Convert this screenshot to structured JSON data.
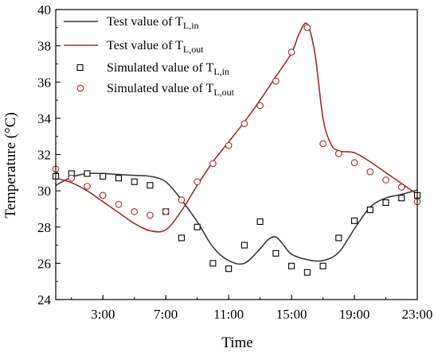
{
  "chart_data": {
    "type": "line",
    "xlabel": "Time",
    "ylabel": "Temperature (°C)",
    "x_tick_labels": [
      "3:00",
      "7:00",
      "11:00",
      "15:00",
      "19:00",
      "23:00"
    ],
    "x_tick_hours": [
      3,
      7,
      11,
      15,
      19,
      23
    ],
    "xlim_hours": [
      0,
      23
    ],
    "ylim": [
      24,
      40
    ],
    "y_ticks": [
      24,
      26,
      28,
      30,
      32,
      34,
      36,
      38,
      40
    ],
    "grid": false,
    "legend_position": "top-left",
    "series": [
      {
        "name": "Test value of T",
        "subscript": "L,in",
        "kind": "line",
        "color": "#3a3a3a",
        "x_hours": [
          0,
          1,
          2,
          3,
          4,
          5,
          6,
          7,
          8,
          9,
          10,
          11,
          12,
          13,
          13.5,
          14,
          14.5,
          15,
          16,
          17,
          18,
          19,
          20,
          21,
          22,
          23
        ],
        "values": [
          30.3,
          30.75,
          30.95,
          30.95,
          30.9,
          30.85,
          30.8,
          30.5,
          29.5,
          28.3,
          26.9,
          26.15,
          26.0,
          26.8,
          27.3,
          27.45,
          27.0,
          26.5,
          26.2,
          26.15,
          26.6,
          27.9,
          29.1,
          29.6,
          29.8,
          30.05
        ]
      },
      {
        "name": "Test value of T",
        "subscript": "L,out",
        "kind": "line",
        "color": "#a52a2a",
        "x_hours": [
          0,
          1,
          2,
          3,
          4,
          5,
          6,
          7,
          8,
          9,
          10,
          11,
          12,
          13,
          14,
          15,
          15.5,
          16,
          16.5,
          17,
          17.5,
          18,
          19,
          20,
          21,
          22,
          23
        ],
        "values": [
          30.7,
          30.45,
          30.0,
          29.4,
          28.8,
          28.2,
          27.8,
          27.85,
          28.9,
          30.3,
          31.6,
          32.7,
          33.8,
          35.0,
          36.3,
          37.6,
          38.7,
          39.2,
          37.5,
          34.0,
          32.6,
          32.2,
          32.1,
          31.6,
          31.0,
          30.4,
          29.8
        ]
      },
      {
        "name": "Simulated value of T",
        "subscript": "L,in",
        "kind": "scatter",
        "marker": "square",
        "color": "#000000",
        "x_hours": [
          0,
          1,
          2,
          3,
          4,
          5,
          6,
          7,
          8,
          9,
          10,
          11,
          12,
          13,
          14,
          15,
          16,
          17,
          18,
          19,
          20,
          21,
          22,
          23
        ],
        "values": [
          30.8,
          30.95,
          30.95,
          30.8,
          30.7,
          30.5,
          30.3,
          28.85,
          27.4,
          28.0,
          26.0,
          25.7,
          27.0,
          28.3,
          26.55,
          25.85,
          25.5,
          25.85,
          27.4,
          28.35,
          28.95,
          29.35,
          29.6,
          29.75
        ]
      },
      {
        "name": "Simulated value of T",
        "subscript": "L,out",
        "kind": "scatter",
        "marker": "circle",
        "color": "#a52a2a",
        "x_hours": [
          0,
          1,
          2,
          3,
          4,
          5,
          6,
          7,
          8,
          9,
          10,
          11,
          12,
          13,
          14,
          15,
          16,
          17,
          18,
          19,
          20,
          21,
          22,
          23
        ],
        "values": [
          31.2,
          30.7,
          30.25,
          29.75,
          29.25,
          28.85,
          28.65,
          28.85,
          29.5,
          30.5,
          31.5,
          32.5,
          33.7,
          34.7,
          36.05,
          37.65,
          39.0,
          32.6,
          32.05,
          31.55,
          31.05,
          30.6,
          30.2,
          29.4
        ]
      }
    ]
  }
}
